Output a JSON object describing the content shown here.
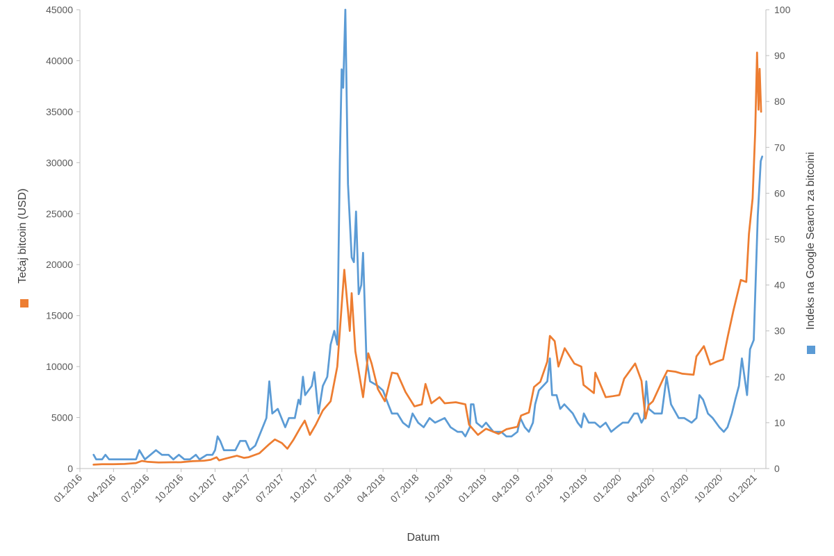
{
  "chart_data": {
    "type": "line",
    "title": "",
    "xlabel": "Datum",
    "ylabel_left": "Tečaj bitcoin (USD)",
    "ylabel_right": "Indeks na Google Search za  bitcoini",
    "x_ticks": [
      "01.2016",
      "04.2016",
      "07.2016",
      "10.2016",
      "01.2017",
      "04.2017",
      "07.2017",
      "10.2017",
      "01.2018",
      "04.2018",
      "07.2018",
      "10.2018",
      "01.2019",
      "04.2019",
      "07.2019",
      "10.2019",
      "01.2020",
      "04.2020",
      "07.2020",
      "10.2020",
      "01.2021"
    ],
    "ylim_left": [
      0,
      45000
    ],
    "ylim_right": [
      0,
      100
    ],
    "y_ticks_left": [
      "0",
      "5000",
      "10000",
      "15000",
      "20000",
      "25000",
      "30000",
      "35000",
      "40000",
      "45000"
    ],
    "y_ticks_right": [
      "0",
      "10",
      "20",
      "30",
      "40",
      "50",
      "60",
      "70",
      "80",
      "90",
      "100"
    ],
    "grid": false,
    "series": [
      {
        "name": "Tečaj bitcoin (USD)",
        "axis": "left",
        "color": "#ED7D31",
        "points": [
          [
            "2016-02-07",
            380
          ],
          [
            "2016-03-01",
            420
          ],
          [
            "2016-04-01",
            420
          ],
          [
            "2016-05-01",
            450
          ],
          [
            "2016-06-01",
            540
          ],
          [
            "2016-06-17",
            750
          ],
          [
            "2016-07-01",
            670
          ],
          [
            "2016-08-01",
            600
          ],
          [
            "2016-09-01",
            610
          ],
          [
            "2016-10-01",
            620
          ],
          [
            "2016-11-01",
            720
          ],
          [
            "2016-12-01",
            760
          ],
          [
            "2016-12-20",
            860
          ],
          [
            "2017-01-05",
            1100
          ],
          [
            "2017-01-12",
            800
          ],
          [
            "2017-02-01",
            1000
          ],
          [
            "2017-03-01",
            1250
          ],
          [
            "2017-03-20",
            1050
          ],
          [
            "2017-04-01",
            1100
          ],
          [
            "2017-05-01",
            1500
          ],
          [
            "2017-05-25",
            2300
          ],
          [
            "2017-06-12",
            2850
          ],
          [
            "2017-07-01",
            2500
          ],
          [
            "2017-07-16",
            1950
          ],
          [
            "2017-08-01",
            2800
          ],
          [
            "2017-08-20",
            4000
          ],
          [
            "2017-09-01",
            4700
          ],
          [
            "2017-09-15",
            3300
          ],
          [
            "2017-10-01",
            4300
          ],
          [
            "2017-10-20",
            5700
          ],
          [
            "2017-11-10",
            6600
          ],
          [
            "2017-11-28",
            10000
          ],
          [
            "2017-12-10",
            16000
          ],
          [
            "2017-12-17",
            19500
          ],
          [
            "2018-01-01",
            13500
          ],
          [
            "2018-01-06",
            17200
          ],
          [
            "2018-01-16",
            11500
          ],
          [
            "2018-02-06",
            7000
          ],
          [
            "2018-02-20",
            11300
          ],
          [
            "2018-03-01",
            10300
          ],
          [
            "2018-03-18",
            7800
          ],
          [
            "2018-04-06",
            6600
          ],
          [
            "2018-04-25",
            9400
          ],
          [
            "2018-05-10",
            9300
          ],
          [
            "2018-06-01",
            7500
          ],
          [
            "2018-06-25",
            6100
          ],
          [
            "2018-07-15",
            6300
          ],
          [
            "2018-07-25",
            8300
          ],
          [
            "2018-08-10",
            6400
          ],
          [
            "2018-09-01",
            7000
          ],
          [
            "2018-09-15",
            6400
          ],
          [
            "2018-10-15",
            6500
          ],
          [
            "2018-11-10",
            6300
          ],
          [
            "2018-11-20",
            4300
          ],
          [
            "2018-12-14",
            3300
          ],
          [
            "2019-01-05",
            3900
          ],
          [
            "2019-02-08",
            3400
          ],
          [
            "2019-03-01",
            3850
          ],
          [
            "2019-03-31",
            4100
          ],
          [
            "2019-04-10",
            5200
          ],
          [
            "2019-05-01",
            5500
          ],
          [
            "2019-05-15",
            8000
          ],
          [
            "2019-06-01",
            8500
          ],
          [
            "2019-06-20",
            10500
          ],
          [
            "2019-06-27",
            13000
          ],
          [
            "2019-07-10",
            12500
          ],
          [
            "2019-07-20",
            10000
          ],
          [
            "2019-08-06",
            11800
          ],
          [
            "2019-09-01",
            10300
          ],
          [
            "2019-09-20",
            10000
          ],
          [
            "2019-09-26",
            8200
          ],
          [
            "2019-10-24",
            7400
          ],
          [
            "2019-10-28",
            9400
          ],
          [
            "2019-11-25",
            7000
          ],
          [
            "2019-12-15",
            7100
          ],
          [
            "2020-01-01",
            7200
          ],
          [
            "2020-01-14",
            8800
          ],
          [
            "2020-02-13",
            10300
          ],
          [
            "2020-03-01",
            8600
          ],
          [
            "2020-03-12",
            4900
          ],
          [
            "2020-03-20",
            6200
          ],
          [
            "2020-04-01",
            6600
          ],
          [
            "2020-04-29",
            8800
          ],
          [
            "2020-05-10",
            9600
          ],
          [
            "2020-06-01",
            9500
          ],
          [
            "2020-06-20",
            9300
          ],
          [
            "2020-07-20",
            9200
          ],
          [
            "2020-07-28",
            11000
          ],
          [
            "2020-08-17",
            12000
          ],
          [
            "2020-09-03",
            10200
          ],
          [
            "2020-09-22",
            10500
          ],
          [
            "2020-10-08",
            10700
          ],
          [
            "2020-10-21",
            13000
          ],
          [
            "2020-11-05",
            15500
          ],
          [
            "2020-11-25",
            18500
          ],
          [
            "2020-12-10",
            18300
          ],
          [
            "2020-12-17",
            23000
          ],
          [
            "2020-12-27",
            26500
          ],
          [
            "2021-01-03",
            33000
          ],
          [
            "2021-01-08",
            40800
          ],
          [
            "2021-01-12",
            35200
          ],
          [
            "2021-01-15",
            39200
          ],
          [
            "2021-01-19",
            35000
          ]
        ]
      },
      {
        "name": "Indeks na Google Search za  bitcoini",
        "axis": "right",
        "color": "#5B9BD5",
        "points": [
          [
            "2016-02-07",
            3
          ],
          [
            "2016-02-14",
            2
          ],
          [
            "2016-03-01",
            2
          ],
          [
            "2016-03-10",
            3
          ],
          [
            "2016-03-20",
            2
          ],
          [
            "2016-04-15",
            2
          ],
          [
            "2016-05-15",
            2
          ],
          [
            "2016-06-01",
            2
          ],
          [
            "2016-06-10",
            4
          ],
          [
            "2016-06-25",
            2
          ],
          [
            "2016-07-10",
            3
          ],
          [
            "2016-07-25",
            4
          ],
          [
            "2016-08-10",
            3
          ],
          [
            "2016-08-28",
            3
          ],
          [
            "2016-09-10",
            2
          ],
          [
            "2016-09-25",
            3
          ],
          [
            "2016-10-10",
            2
          ],
          [
            "2016-10-25",
            2
          ],
          [
            "2016-11-10",
            3
          ],
          [
            "2016-11-20",
            2
          ],
          [
            "2016-12-10",
            3
          ],
          [
            "2016-12-25",
            3
          ],
          [
            "2017-01-01",
            4
          ],
          [
            "2017-01-08",
            7
          ],
          [
            "2017-01-15",
            6
          ],
          [
            "2017-01-25",
            4
          ],
          [
            "2017-02-25",
            4
          ],
          [
            "2017-03-10",
            6
          ],
          [
            "2017-03-25",
            6
          ],
          [
            "2017-04-05",
            4
          ],
          [
            "2017-04-20",
            5
          ],
          [
            "2017-05-10",
            9
          ],
          [
            "2017-05-20",
            11
          ],
          [
            "2017-05-28",
            19
          ],
          [
            "2017-06-05",
            12
          ],
          [
            "2017-06-20",
            13
          ],
          [
            "2017-07-10",
            9
          ],
          [
            "2017-07-20",
            11
          ],
          [
            "2017-08-05",
            11
          ],
          [
            "2017-08-15",
            15
          ],
          [
            "2017-08-20",
            14
          ],
          [
            "2017-08-27",
            20
          ],
          [
            "2017-09-02",
            16
          ],
          [
            "2017-09-20",
            18
          ],
          [
            "2017-09-27",
            21
          ],
          [
            "2017-10-08",
            12
          ],
          [
            "2017-10-20",
            18
          ],
          [
            "2017-11-01",
            20
          ],
          [
            "2017-11-10",
            27
          ],
          [
            "2017-11-20",
            30
          ],
          [
            "2017-11-28",
            27
          ],
          [
            "2017-12-05",
            67
          ],
          [
            "2017-12-10",
            87
          ],
          [
            "2017-12-14",
            83
          ],
          [
            "2017-12-20",
            100
          ],
          [
            "2017-12-27",
            62
          ],
          [
            "2018-01-06",
            46
          ],
          [
            "2018-01-12",
            45
          ],
          [
            "2018-01-18",
            56
          ],
          [
            "2018-01-25",
            38
          ],
          [
            "2018-02-01",
            40
          ],
          [
            "2018-02-06",
            47
          ],
          [
            "2018-02-15",
            24
          ],
          [
            "2018-02-25",
            19
          ],
          [
            "2018-03-18",
            18
          ],
          [
            "2018-04-01",
            17
          ],
          [
            "2018-04-15",
            14
          ],
          [
            "2018-04-25",
            12
          ],
          [
            "2018-05-10",
            12
          ],
          [
            "2018-05-25",
            10
          ],
          [
            "2018-06-10",
            9
          ],
          [
            "2018-06-20",
            12
          ],
          [
            "2018-07-05",
            10
          ],
          [
            "2018-07-20",
            9
          ],
          [
            "2018-08-05",
            11
          ],
          [
            "2018-08-20",
            10
          ],
          [
            "2018-09-15",
            11
          ],
          [
            "2018-10-01",
            9
          ],
          [
            "2018-10-20",
            8
          ],
          [
            "2018-11-01",
            8
          ],
          [
            "2018-11-10",
            7
          ],
          [
            "2018-11-22",
            9
          ],
          [
            "2018-11-25",
            14
          ],
          [
            "2018-12-02",
            14
          ],
          [
            "2018-12-10",
            10
          ],
          [
            "2018-12-25",
            9
          ],
          [
            "2019-01-05",
            10
          ],
          [
            "2019-01-25",
            8
          ],
          [
            "2019-02-15",
            8
          ],
          [
            "2019-03-01",
            7
          ],
          [
            "2019-03-15",
            7
          ],
          [
            "2019-03-31",
            8
          ],
          [
            "2019-04-08",
            11
          ],
          [
            "2019-04-20",
            9
          ],
          [
            "2019-05-01",
            8
          ],
          [
            "2019-05-12",
            10
          ],
          [
            "2019-05-18",
            14
          ],
          [
            "2019-05-28",
            17
          ],
          [
            "2019-06-20",
            19
          ],
          [
            "2019-06-27",
            24
          ],
          [
            "2019-07-03",
            16
          ],
          [
            "2019-07-15",
            16
          ],
          [
            "2019-07-25",
            13
          ],
          [
            "2019-08-05",
            14
          ],
          [
            "2019-08-28",
            12
          ],
          [
            "2019-09-10",
            10
          ],
          [
            "2019-09-20",
            9
          ],
          [
            "2019-09-27",
            12
          ],
          [
            "2019-10-10",
            10
          ],
          [
            "2019-10-27",
            10
          ],
          [
            "2019-11-10",
            9
          ],
          [
            "2019-11-25",
            10
          ],
          [
            "2019-12-10",
            8
          ],
          [
            "2019-12-25",
            9
          ],
          [
            "2020-01-10",
            10
          ],
          [
            "2020-01-25",
            10
          ],
          [
            "2020-02-10",
            12
          ],
          [
            "2020-02-20",
            12
          ],
          [
            "2020-03-01",
            10
          ],
          [
            "2020-03-08",
            11
          ],
          [
            "2020-03-14",
            19
          ],
          [
            "2020-03-21",
            13
          ],
          [
            "2020-04-05",
            12
          ],
          [
            "2020-04-25",
            12
          ],
          [
            "2020-05-08",
            20
          ],
          [
            "2020-05-20",
            14
          ],
          [
            "2020-06-10",
            11
          ],
          [
            "2020-06-25",
            11
          ],
          [
            "2020-07-15",
            10
          ],
          [
            "2020-07-28",
            11
          ],
          [
            "2020-08-05",
            16
          ],
          [
            "2020-08-15",
            15
          ],
          [
            "2020-08-28",
            12
          ],
          [
            "2020-09-10",
            11
          ],
          [
            "2020-09-28",
            9
          ],
          [
            "2020-10-10",
            8
          ],
          [
            "2020-10-20",
            9
          ],
          [
            "2020-11-01",
            12
          ],
          [
            "2020-11-10",
            15
          ],
          [
            "2020-11-20",
            18
          ],
          [
            "2020-11-28",
            24
          ],
          [
            "2020-12-05",
            20
          ],
          [
            "2020-12-12",
            16
          ],
          [
            "2020-12-20",
            26
          ],
          [
            "2020-12-30",
            28
          ],
          [
            "2021-01-04",
            40
          ],
          [
            "2021-01-10",
            55
          ],
          [
            "2021-01-18",
            67
          ],
          [
            "2021-01-22",
            68
          ]
        ]
      }
    ]
  }
}
